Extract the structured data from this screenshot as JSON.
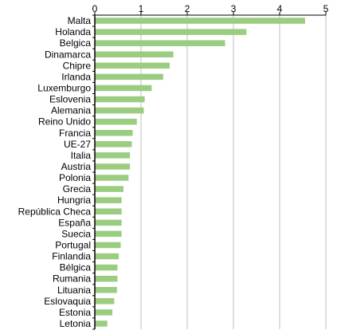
{
  "chart_data": {
    "type": "bar",
    "orientation": "horizontal",
    "title": "",
    "xlabel": "",
    "ylabel": "",
    "xlim": [
      0,
      5
    ],
    "x_ticks": [
      "0",
      "1",
      "2",
      "3",
      "4",
      "5"
    ],
    "x_axis_position": "top",
    "grid": "vertical",
    "bar_color": "#9acd7f",
    "categories": [
      "Malta",
      "Holanda",
      "Belgica",
      "Dinamarca",
      "Chipre",
      "Irlanda",
      "Luxemburgo",
      "Eslovenia",
      "Alemania",
      "Reino Unido",
      "Francia",
      "UE-27",
      "Italia",
      "Austria",
      "Polonia",
      "Grecia",
      "Hungria",
      "República Checa",
      "España",
      "Suecia",
      "Portugal",
      "Finlandia",
      "Bélgica",
      "Rumania",
      "Lituania",
      "Eslovaquia",
      "Estonia",
      "Letonia"
    ],
    "values": [
      4.55,
      3.28,
      2.82,
      1.7,
      1.62,
      1.48,
      1.23,
      1.08,
      1.06,
      0.91,
      0.82,
      0.8,
      0.76,
      0.76,
      0.73,
      0.62,
      0.58,
      0.58,
      0.58,
      0.58,
      0.56,
      0.52,
      0.49,
      0.49,
      0.48,
      0.42,
      0.38,
      0.27
    ]
  }
}
